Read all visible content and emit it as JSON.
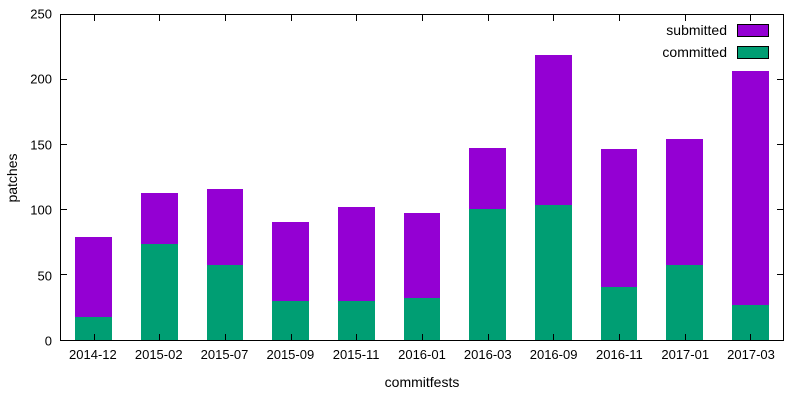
{
  "chart_data": {
    "type": "bar",
    "stacked": true,
    "title": "",
    "xlabel": "commitfests",
    "ylabel": "patches",
    "ylim": [
      0,
      250
    ],
    "yticks": [
      0,
      50,
      100,
      150,
      200,
      250
    ],
    "categories": [
      "2014-12",
      "2015-02",
      "2015-07",
      "2015-09",
      "2015-11",
      "2016-01",
      "2016-03",
      "2016-09",
      "2016-11",
      "2017-01",
      "2017-03"
    ],
    "series": [
      {
        "name": "submitted",
        "color": "#9400d3",
        "values": [
          79,
          113,
          116,
          91,
          102,
          98,
          148,
          219,
          147,
          155,
          207
        ]
      },
      {
        "name": "committed",
        "color": "#009e73",
        "values": [
          18,
          74,
          58,
          30,
          30,
          32,
          101,
          104,
          41,
          58,
          27
        ]
      }
    ],
    "legend": [
      "submitted",
      "committed"
    ],
    "legend_position": "top-right",
    "grid": "off"
  }
}
